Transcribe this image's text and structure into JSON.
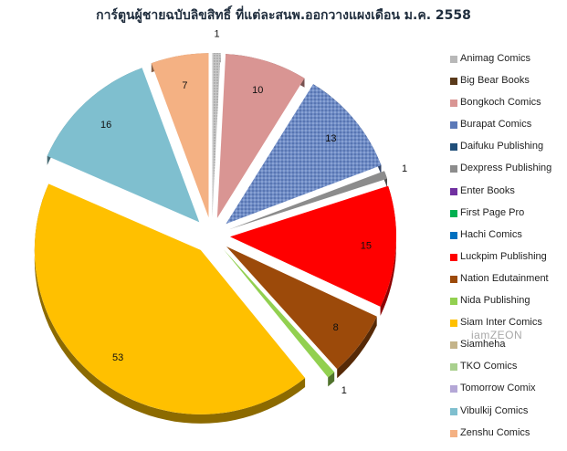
{
  "chart_data": {
    "type": "pie",
    "title": "การ์ตูนผู้ชายฉบับลิขสิทธิ์ ที่แต่ละสนพ.ออกวางแผงเดือน ม.ค. 2558",
    "slices": [
      {
        "label": "Animag Comics",
        "value": 1,
        "color": "#b8b8b8",
        "pattern": "dots"
      },
      {
        "label": "Big Bear Books",
        "value": 0,
        "color": "#5a3a1a"
      },
      {
        "label": "Bongkoch Comics",
        "value": 10,
        "color": "#d99593"
      },
      {
        "label": "Burapat Comics",
        "value": 13,
        "color": "#5b79b8",
        "pattern": "dots"
      },
      {
        "label": "Daifuku Publishing",
        "value": 0,
        "color": "#1f4e79"
      },
      {
        "label": "Dexpress Publishing",
        "value": 1,
        "color": "#8c8c8c"
      },
      {
        "label": "Enter Books",
        "value": 0,
        "color": "#7030a0"
      },
      {
        "label": "First Page Pro",
        "value": 0,
        "color": "#00b050"
      },
      {
        "label": "Hachi Comics",
        "value": 0,
        "color": "#0070c0"
      },
      {
        "label": "Luckpim Publishing",
        "value": 15,
        "color": "#ff0000"
      },
      {
        "label": "Nation Edutainment",
        "value": 8,
        "color": "#9c4a0a"
      },
      {
        "label": "Nida Publishing",
        "value": 1,
        "color": "#92d050"
      },
      {
        "label": "Siam Inter Comics",
        "value": 53,
        "color": "#ffc000"
      },
      {
        "label": "Siamheha",
        "value": 0,
        "color": "#c4b48a",
        "pattern": "dots"
      },
      {
        "label": "TKO Comics",
        "value": 0,
        "color": "#a9d08e"
      },
      {
        "label": "Tomorrow Comix",
        "value": 0,
        "color": "#b4a7d6"
      },
      {
        "label": "Vibulkij Comics",
        "value": 16,
        "color": "#7fbfcf"
      },
      {
        "label": "Zenshu Comics",
        "value": 7,
        "color": "#f4b183"
      }
    ],
    "legend_position": "right"
  },
  "watermark": "iamZEON"
}
